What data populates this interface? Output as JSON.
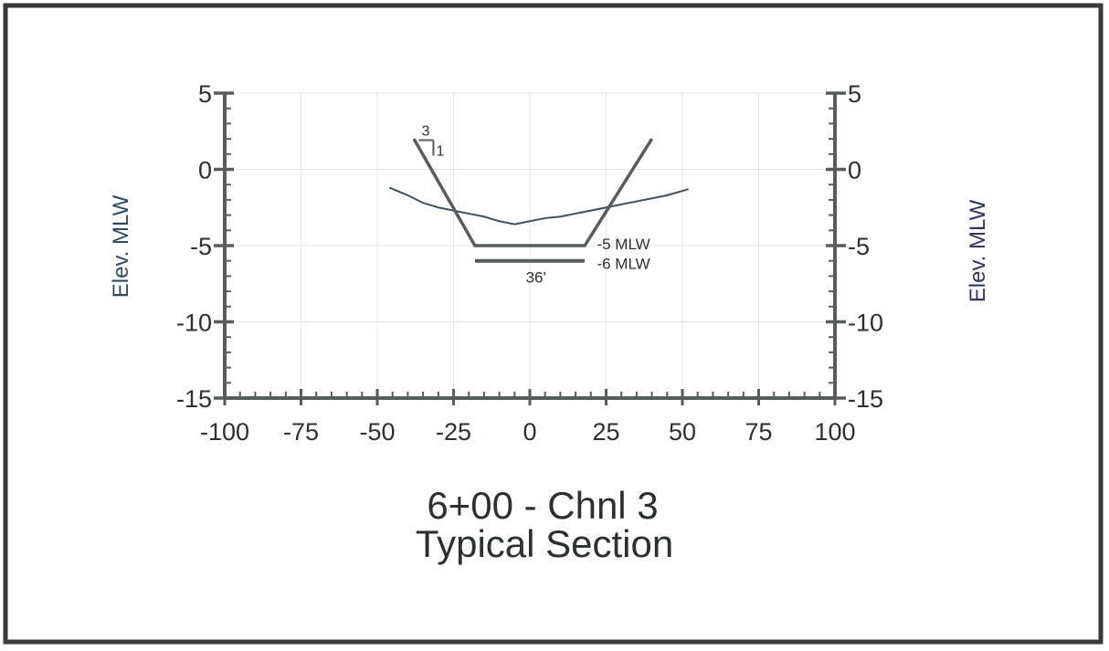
{
  "colors": {
    "frame": "#3a3a3a",
    "axis": "#555e5a",
    "ylabel": "#2f4a66",
    "ylabel_right": "#2b3568",
    "text": "#2b3030",
    "ground": "#3a5266",
    "grid": "#e4e6e6"
  },
  "chart_data": {
    "type": "line",
    "title": "6+00 - Chnl 3",
    "subtitle": "Typical Section",
    "xlabel": "",
    "ylabel": "Elev. MLW",
    "ylabel_right": "Elev. MLW",
    "xlim": [
      -100,
      100
    ],
    "ylim": [
      -15,
      5
    ],
    "x_ticks": [
      -100,
      -75,
      -50,
      -25,
      0,
      25,
      50,
      75,
      100
    ],
    "x_tick_labels": [
      "-100",
      "-75",
      "-50",
      "-25",
      "0",
      "25",
      "50",
      "75",
      "100"
    ],
    "y_ticks": [
      5,
      0,
      -5,
      -10,
      -15
    ],
    "y_tick_labels": [
      "5",
      "0",
      "-5",
      "-10",
      "-15"
    ],
    "grid": true,
    "series": [
      {
        "kind": "existing-ground",
        "x": [
          -46,
          -40,
          -35,
          -30,
          -25,
          -20,
          -15,
          -10,
          -5,
          0,
          5,
          10,
          15,
          20,
          25,
          30,
          35,
          40,
          45,
          52
        ],
        "y": [
          -1.2,
          -1.7,
          -2.2,
          -2.5,
          -2.7,
          -2.9,
          -3.1,
          -3.4,
          -3.6,
          -3.4,
          -3.2,
          -3.1,
          -2.9,
          -2.7,
          -2.5,
          -2.3,
          -2.1,
          -1.9,
          -1.7,
          -1.3
        ]
      },
      {
        "kind": "design-template",
        "x": [
          -38,
          -18,
          18,
          40
        ],
        "y": [
          2,
          -5,
          -5,
          2
        ]
      },
      {
        "kind": "overdredge",
        "x": [
          -18,
          18
        ],
        "y": [
          -6,
          -6
        ]
      }
    ],
    "annotations": {
      "slope_run": "3",
      "slope_rise": "1",
      "design_depth": "-5 MLW",
      "overdredge_depth": "-6 MLW",
      "bottom_width": "36'"
    }
  }
}
